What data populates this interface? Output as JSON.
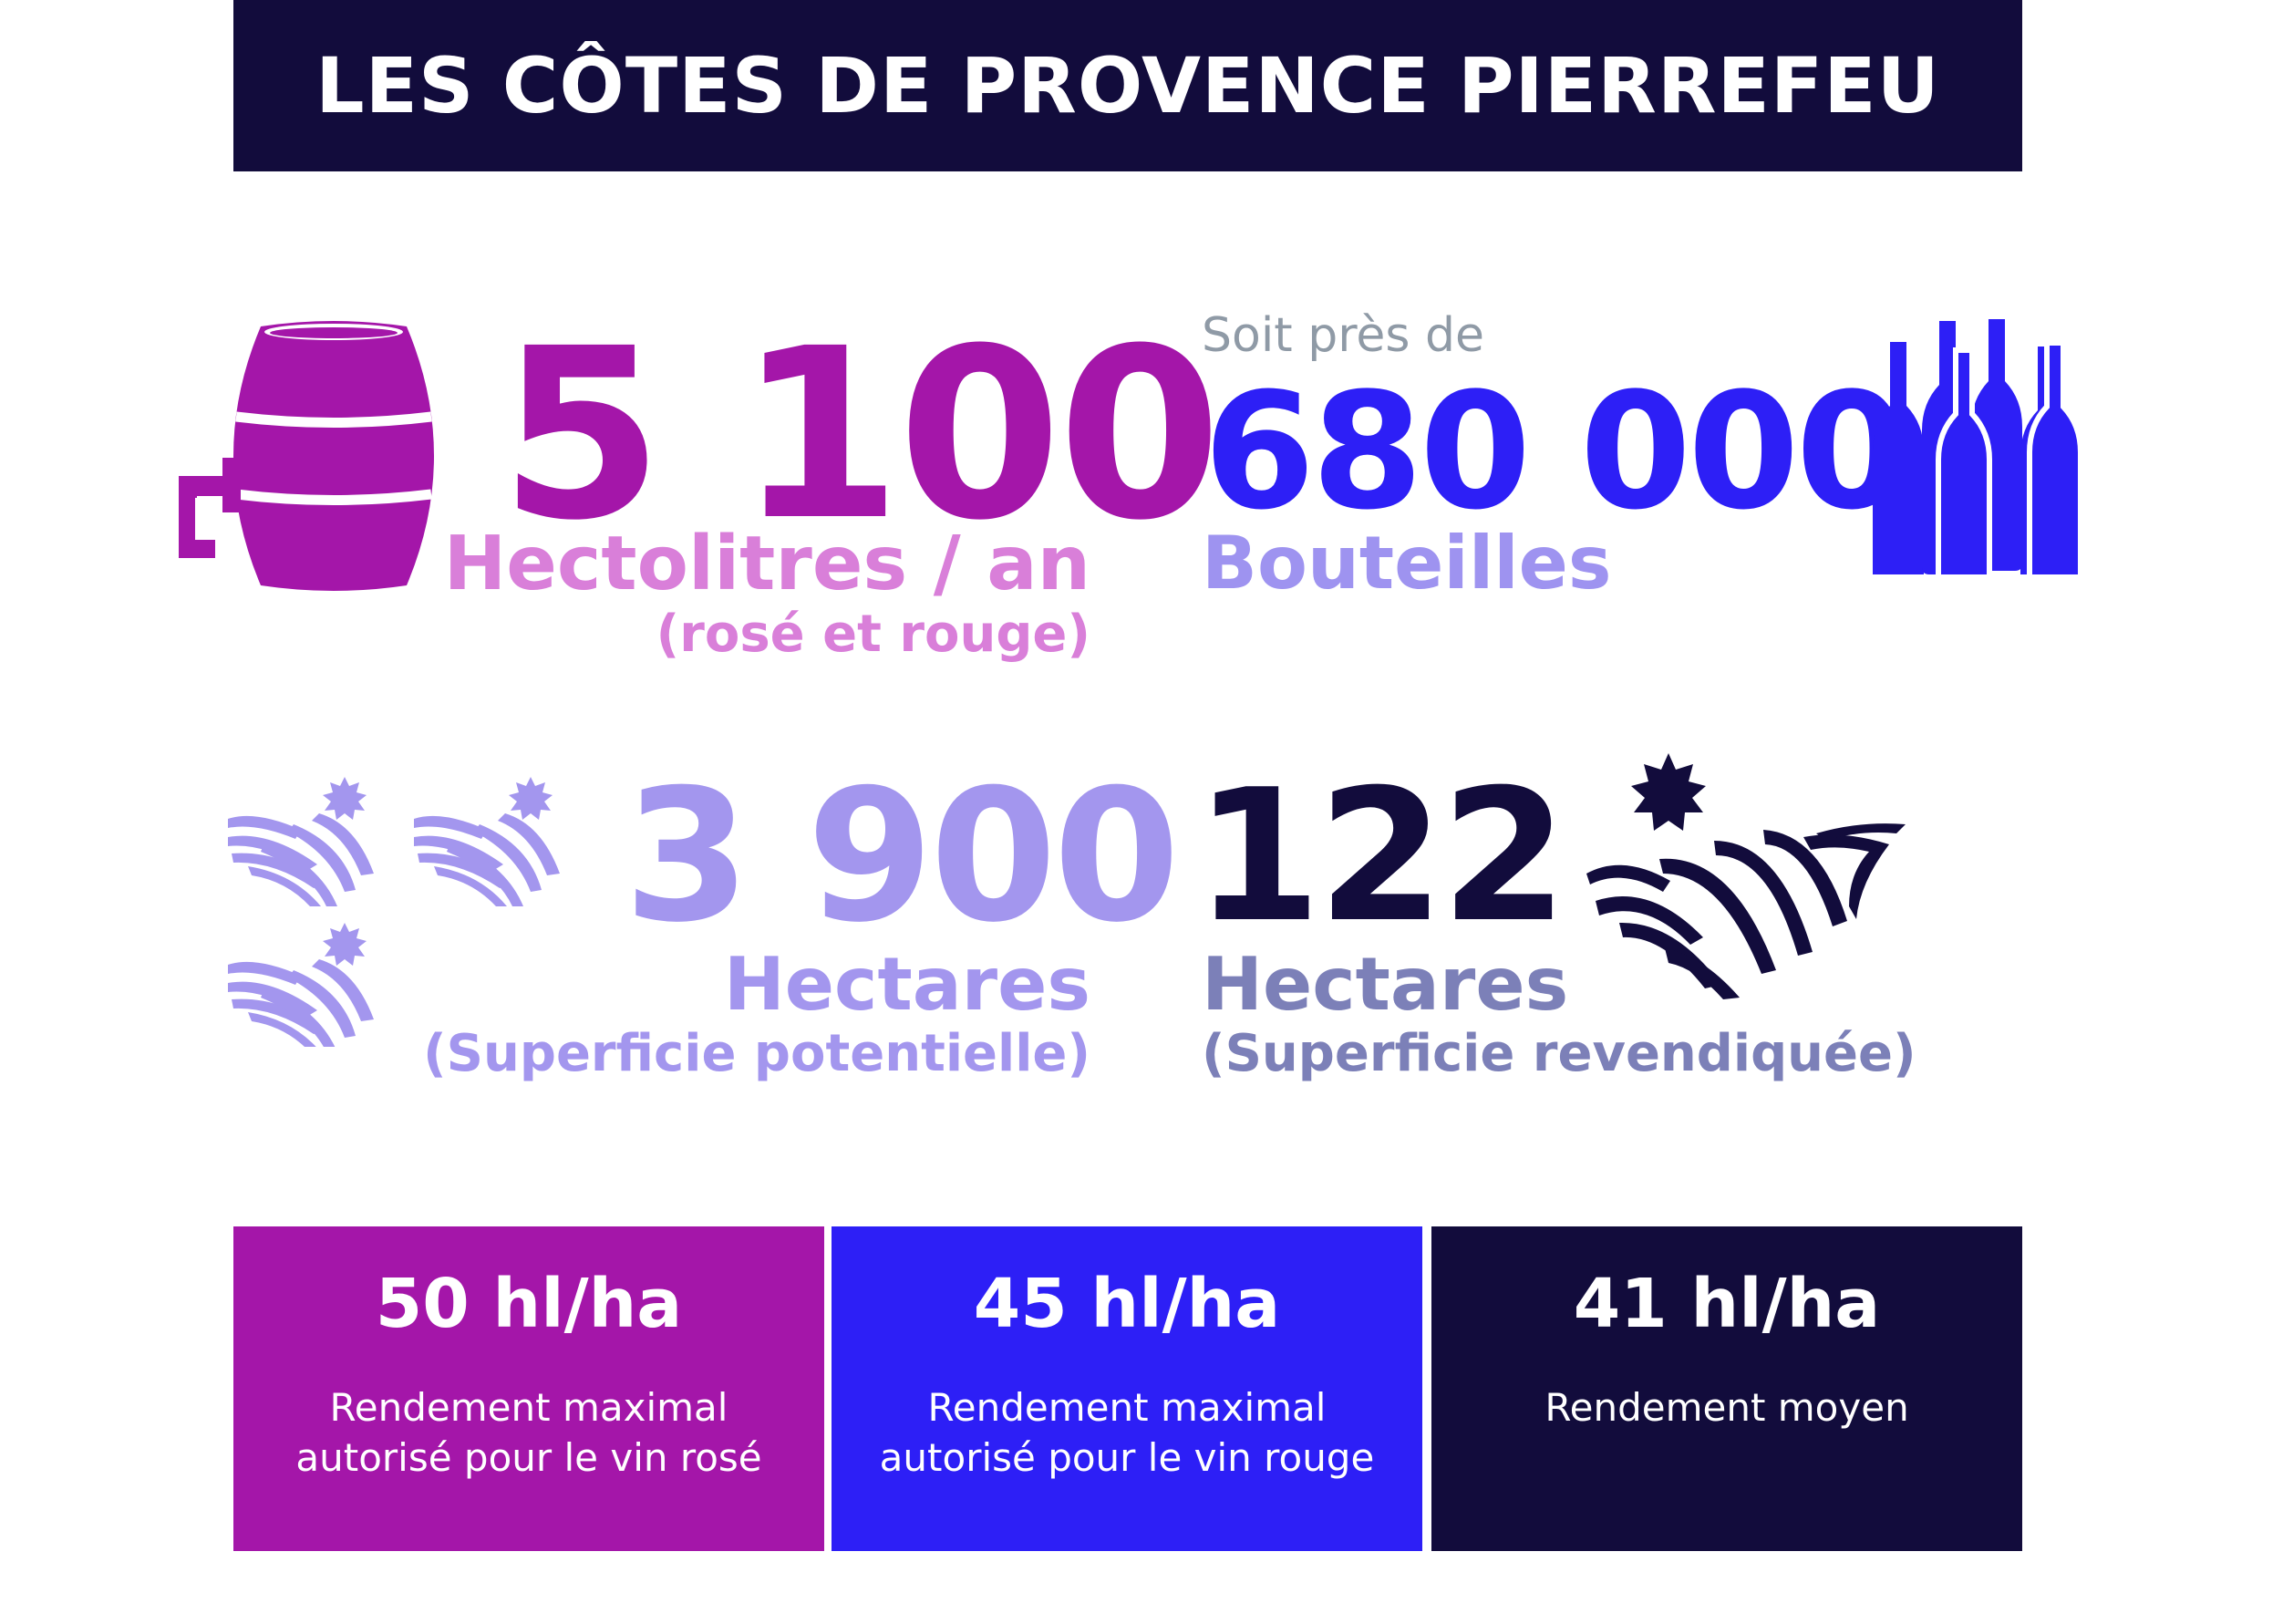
{
  "header": {
    "title": "LES CÔTES DE PROVENCE PIERREFEU"
  },
  "colors": {
    "navy": "#120c3c",
    "magenta": "#a416a9",
    "magenta_light": "#d97fd9",
    "blue": "#2d1ff6",
    "blue_light": "#9e93f0",
    "lavender": "#a396ee",
    "slate": "#7c80b8"
  },
  "stats": {
    "volume": {
      "value": "5 100",
      "unit": "Hectolitres / an",
      "note": "(rosé et rouge)",
      "icon": "barrel-icon"
    },
    "bottles": {
      "prefix": "Soit près de",
      "value": "680 000",
      "unit": "Bouteilles",
      "icon": "wine-bottles-icon"
    },
    "potential_area": {
      "value": "3 900",
      "unit": "Hectares",
      "note": "(Superficie potentielle)",
      "icon": "vineyard-fields-icon"
    },
    "claimed_area": {
      "value": "122",
      "unit": "Hectares",
      "note": "(Superficie revendiquée)",
      "icon": "vineyard-sun-icon"
    }
  },
  "yields": [
    {
      "value": "50 hl/ha",
      "caption_line1": "Rendement maximal",
      "caption_line2": "autorisé pour le vin rosé"
    },
    {
      "value": "45 hl/ha",
      "caption_line1": "Rendement maximal",
      "caption_line2": "autorisé pour le vin rouge"
    },
    {
      "value": "41 hl/ha",
      "caption_line1": "Rendement moyen",
      "caption_line2": ""
    }
  ]
}
